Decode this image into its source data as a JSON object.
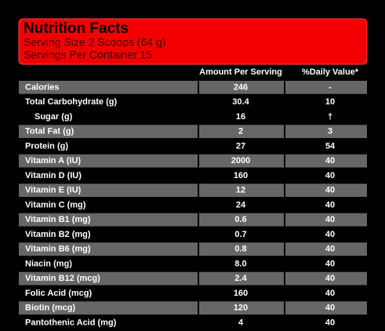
{
  "header": {
    "title": "Nutrition Facts",
    "serving_size": "Serving Size  2 Scoops (64 g)",
    "servings_per_container": "Servings Per Container 15"
  },
  "table": {
    "columns": [
      "Amount Per Serving",
      "%Daily Value*"
    ],
    "rows": [
      [
        "Calories",
        "246",
        "-"
      ],
      [
        "Total Carbohydrate (g)",
        "30.4",
        "10"
      ],
      [
        "Sugar (g)",
        "16",
        "†"
      ],
      [
        "Total Fat (g)",
        "2",
        "3"
      ],
      [
        "Protein (g)",
        "27",
        "54"
      ],
      [
        "Vitamin A (IU)",
        "2000",
        "40"
      ],
      [
        "Vitamin D (IU)",
        "160",
        "40"
      ],
      [
        "Vitamin E (IU)",
        "12",
        "40"
      ],
      [
        "Vitamin C (mg)",
        "24",
        "40"
      ],
      [
        "Vitamin B1 (mg)",
        "0.6",
        "40"
      ],
      [
        "Vitamin B2 (mg)",
        "0.7",
        "40"
      ],
      [
        "Vitamin B6 (mg)",
        "0.8",
        "40"
      ],
      [
        "Niacin (mg)",
        "8.0",
        "40"
      ],
      [
        "Vitamin B12 (mcg)",
        "2.4",
        "40"
      ],
      [
        "Folic Acid (mcg)",
        "160",
        "40"
      ],
      [
        "Biotin (mcg)",
        "120",
        "40"
      ],
      [
        "Pantothenic Acid (mg)",
        "4",
        "40"
      ]
    ]
  }
}
